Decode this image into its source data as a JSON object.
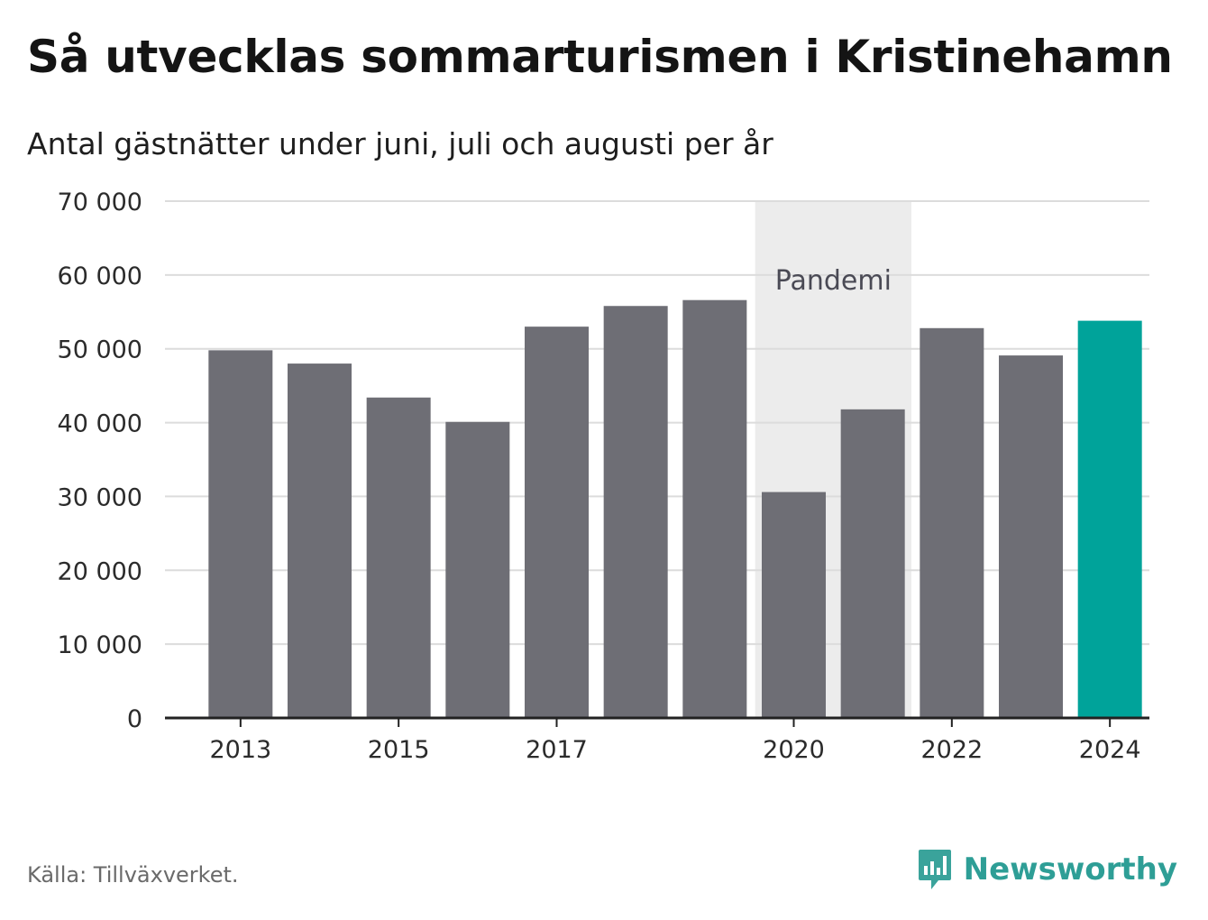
{
  "title": "Så utvecklas sommarturismen i Kristinehamn",
  "subtitle": "Antal gästnätter under juni, juli och augusti per år",
  "source": "Källa: Tillväxverket.",
  "brand": {
    "name": "Newsworthy",
    "icon": "newsworthy-logo-icon",
    "color": "#3aa39b"
  },
  "colors": {
    "bar": "#6e6e75",
    "highlight": "#00a39a",
    "shade": "#ececec",
    "grid": "#dcdcdc",
    "axis": "#222222"
  },
  "chart_data": {
    "type": "bar",
    "title": "Så utvecklas sommarturismen i Kristinehamn",
    "subtitle": "Antal gästnätter under juni, juli och augusti per år",
    "categories": [
      "2013",
      "2014",
      "2015",
      "2016",
      "2017",
      "2018",
      "2019",
      "2020",
      "2021",
      "2022",
      "2023",
      "2024"
    ],
    "values": [
      49800,
      48000,
      43400,
      40100,
      53000,
      55800,
      56600,
      30600,
      41800,
      52800,
      49100,
      53800
    ],
    "highlight_category": "2024",
    "x_tick_labels": [
      "2013",
      "2015",
      "2017",
      "2020",
      "2022",
      "2024"
    ],
    "y_ticks": [
      0,
      10000,
      20000,
      30000,
      40000,
      50000,
      60000,
      70000
    ],
    "y_tick_labels": [
      "0",
      "10 000",
      "20 000",
      "30 000",
      "40 000",
      "50 000",
      "60 000",
      "70 000"
    ],
    "ylim": [
      0,
      70000
    ],
    "xlabel": "",
    "ylabel": "",
    "grid": true,
    "shaded_region": {
      "label": "Pandemi",
      "from": "2020",
      "to": "2021"
    },
    "source": "Källa: Tillväxverket."
  }
}
